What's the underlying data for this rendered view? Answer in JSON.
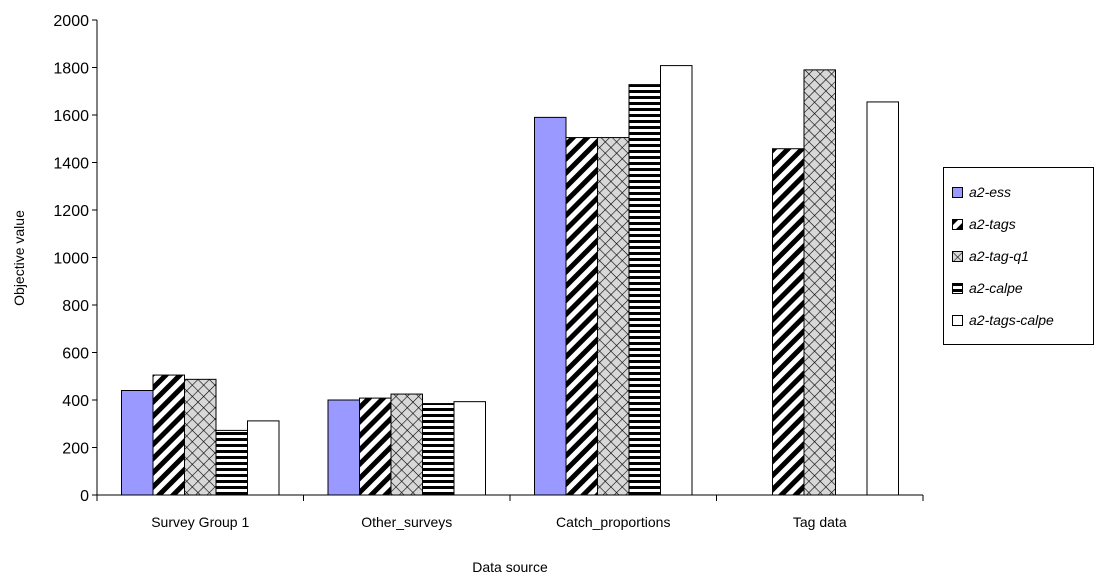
{
  "chart_data": {
    "type": "bar",
    "title": "",
    "xlabel": "Data source",
    "ylabel": "Objective value",
    "ylim": [
      0,
      2000
    ],
    "yticks": [
      0,
      200,
      400,
      600,
      800,
      1000,
      1200,
      1400,
      1600,
      1800,
      2000
    ],
    "categories": [
      "Survey Group 1",
      "Other_surveys",
      "Catch_proportions",
      "Tag data"
    ],
    "series": [
      {
        "name": "a2-ess",
        "values": [
          440,
          400,
          1590,
          null
        ],
        "pattern": "solid",
        "color": "#9999ff"
      },
      {
        "name": "a2-tags",
        "values": [
          505,
          408,
          1505,
          1458
        ],
        "pattern": "diagonal-stripes",
        "color": "#000000"
      },
      {
        "name": "a2-tag-q1",
        "values": [
          487,
          425,
          1505,
          1790
        ],
        "pattern": "crosshatch",
        "color": "#000000"
      },
      {
        "name": "a2-calpe",
        "values": [
          272,
          385,
          1728,
          null
        ],
        "pattern": "horizontal-stripes",
        "color": "#000000"
      },
      {
        "name": "a2-tags-calpe",
        "values": [
          312,
          393,
          1808,
          1655
        ],
        "pattern": "white",
        "color": "#ffffff"
      }
    ],
    "grid": false,
    "legend": "right"
  }
}
